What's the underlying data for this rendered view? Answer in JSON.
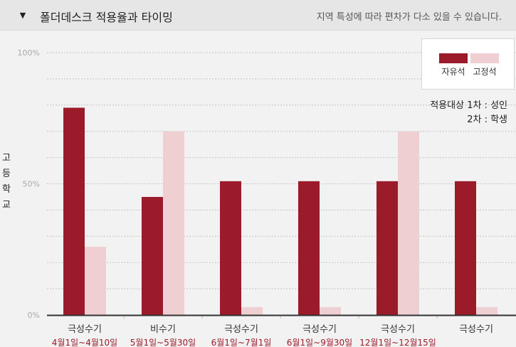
{
  "header": {
    "title": "폴더데스크 적용율과 타이밍",
    "note": "지역 특성에 따라 편차가 다소 있을 수 있습니다.",
    "toggle_icon": "caret-down-icon"
  },
  "target_note": {
    "line1": "적용대상 1차 : 성인",
    "line2": "2차 : 학생"
  },
  "chart_data": {
    "type": "bar",
    "ylabel": "고등학교",
    "ylim": [
      0,
      100
    ],
    "yticks": [
      "100%",
      "50%",
      "0%"
    ],
    "grid": true,
    "legend_position": "top-right",
    "categories": [
      "극성수기",
      "비수기",
      "극성수기",
      "극성수기",
      "극성수기",
      "극성수기"
    ],
    "dates": [
      "4월1일~4월10일",
      "5월1일~5월30일",
      "6월1일~7월1일",
      "6월1일~9월30일",
      "12월1일~12월15일",
      ""
    ],
    "series": [
      {
        "name": "자유석",
        "color": "#9b1b2a",
        "values": [
          79,
          45,
          51,
          51,
          51,
          51
        ]
      },
      {
        "name": "고정석",
        "color": "#f0cfd2",
        "values": [
          26,
          70,
          3,
          3,
          70,
          3
        ]
      }
    ]
  }
}
